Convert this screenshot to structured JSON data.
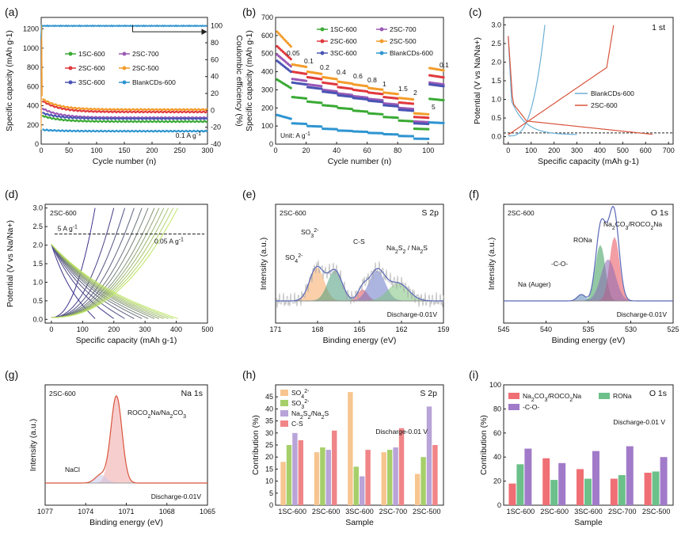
{
  "figure": {
    "colors": {
      "sc1_600": "#3aaa35",
      "sc2_700": "#9b59b6",
      "sc2_600": "#e0393e",
      "sc2_500": "#f39c2a",
      "sc3_600": "#4a55b4",
      "blank": "#2f95d1",
      "blank_c": "#6cb0d6",
      "sc2_c": "#d8553d",
      "sulfate": "#f7a964",
      "sulfite": "#4a9c7d",
      "cs": "#e8505b",
      "nas": "#7fc47f",
      "nas2": "#6a78c8",
      "env": "#5a68b8",
      "ro_na": "#3a9d5a",
      "co": "#8e6ab5",
      "na_auger": "#5b8ab8",
      "nacl": "#7c8fc2",
      "h_so4": "#f7c590",
      "h_so3": "#a6cf6a",
      "h_na2s": "#b8a4d8",
      "h_cs": "#f08588",
      "i_na2co3": "#ef6f74",
      "i_rona": "#6cc08a",
      "i_co": "#a17bc9"
    }
  },
  "chart_data": [
    {
      "panel": "(a)",
      "type": "scatter",
      "xlabel": "Cycle number (n)",
      "ylabel": "Specific capacity (mAh g-1)",
      "y2label": "Coulombic efficiency (%)",
      "xlim": [
        0,
        300
      ],
      "ylim": [
        0,
        1300
      ],
      "y2lim": [
        -40,
        110
      ],
      "xticks": [
        "0",
        "50",
        "100",
        "150",
        "200",
        "250",
        "300"
      ],
      "yticks": [
        "0",
        "200",
        "400",
        "600",
        "800",
        "1000",
        "1200"
      ],
      "y2ticks": [
        "-40",
        "-20",
        "0",
        "20",
        "40",
        "60",
        "80",
        "100"
      ],
      "annotation": "0.1 A g-1",
      "series": [
        {
          "name": "1SC-600",
          "color_key": "sc1_600",
          "start": 300,
          "end": 235
        },
        {
          "name": "2SC-700",
          "color_key": "sc2_700",
          "start": 380,
          "end": 275
        },
        {
          "name": "2SC-600",
          "color_key": "sc2_600",
          "start": 460,
          "end": 335
        },
        {
          "name": "2SC-500",
          "color_key": "sc2_500",
          "start": 480,
          "end": 360
        },
        {
          "name": "3SC-600",
          "color_key": "sc3_600",
          "start": 330,
          "end": 265
        },
        {
          "name": "BlankCDs-600",
          "color_key": "blank",
          "start": 150,
          "end": 135
        }
      ],
      "ce": 100
    },
    {
      "panel": "(b)",
      "type": "scatter",
      "xlabel": "Cycle number (n)",
      "ylabel": "Specific capacity (mAh g-1)",
      "xlim": [
        0,
        110
      ],
      "ylim": [
        0,
        700
      ],
      "xticks": [
        "0",
        "20",
        "40",
        "60",
        "80",
        "100"
      ],
      "yticks": [
        "0",
        "100",
        "200",
        "300",
        "400",
        "500",
        "600",
        "700"
      ],
      "unit_label": "Unit: A g-1",
      "rates": [
        "0.05",
        "0.1",
        "0.2",
        "0.4",
        "0.6",
        "0.8",
        "1",
        "1.5",
        "2",
        "5",
        "0.1"
      ],
      "series": [
        {
          "name": "1SC-600",
          "color_key": "sc1_600",
          "values": [
            310,
            260,
            235,
            215,
            200,
            185,
            170,
            150,
            130,
            85,
            250
          ]
        },
        {
          "name": "2SC-700",
          "color_key": "sc2_700",
          "values": [
            430,
            360,
            330,
            300,
            280,
            265,
            250,
            225,
            200,
            125,
            340
          ]
        },
        {
          "name": "2SC-600",
          "color_key": "sc2_600",
          "values": [
            470,
            400,
            370,
            340,
            315,
            300,
            285,
            260,
            230,
            150,
            380
          ]
        },
        {
          "name": "2SC-500",
          "color_key": "sc2_500",
          "values": [
            540,
            440,
            400,
            370,
            345,
            330,
            310,
            285,
            255,
            170,
            420
          ]
        },
        {
          "name": "3SC-600",
          "color_key": "sc3_600",
          "values": [
            400,
            340,
            315,
            290,
            270,
            255,
            240,
            215,
            190,
            115,
            330
          ]
        },
        {
          "name": "BlankCDs-600",
          "color_key": "blank",
          "values": [
            140,
            115,
            100,
            85,
            75,
            70,
            62,
            55,
            45,
            30,
            120
          ]
        }
      ]
    },
    {
      "panel": "(c)",
      "type": "line",
      "xlabel": "Specific capacity (mAh g-1)",
      "ylabel": "Potential (V vs Na/Na+)",
      "xlim": [
        -20,
        720
      ],
      "ylim": [
        -0.2,
        3.2
      ],
      "xticks": [
        "0",
        "100",
        "200",
        "300",
        "400",
        "500",
        "600",
        "700"
      ],
      "yticks": [
        "0.0",
        "0.5",
        "1.0",
        "1.5",
        "2.0",
        "2.5",
        "3.0"
      ],
      "title": "1 st",
      "series": [
        {
          "name": "BlankCDs-600",
          "color_key": "blank_c"
        },
        {
          "name": "2SC-600",
          "color_key": "sc2_c"
        }
      ]
    },
    {
      "panel": "(d)",
      "type": "line",
      "xlabel": "Specific capacity (mAh g-1)",
      "ylabel": "Potential (V vs Na/Na+)",
      "xlim": [
        -20,
        500
      ],
      "ylim": [
        -0.1,
        3.1
      ],
      "xticks": [
        "0",
        "100",
        "200",
        "300",
        "400",
        "500"
      ],
      "yticks": [
        "0.0",
        "0.5",
        "1.0",
        "1.5",
        "2.0",
        "2.5",
        "3.0"
      ],
      "sample": "2SC-600",
      "label_high": "5 A g-1",
      "label_low": "0.05 A g-1",
      "caps": [
        140,
        200,
        235,
        265,
        290,
        310,
        330,
        345,
        360,
        375,
        390,
        405
      ]
    },
    {
      "panel": "(e)",
      "type": "line",
      "xlabel": "Binding energy (eV)",
      "ylabel": "Intensity (a.u.)",
      "xticks": [
        "171",
        "168",
        "165",
        "162",
        "159"
      ],
      "sample": "2SC-600",
      "element": "S 2p",
      "state": "Discharge-0.01V",
      "peaks": [
        "SO4 2-",
        "SO3 2-",
        "C-S",
        "Na2S2 / Na2S"
      ]
    },
    {
      "panel": "(f)",
      "type": "line",
      "xlabel": "Binding energy (eV)",
      "ylabel": "Intensity (a.u.)",
      "xticks": [
        "545",
        "540",
        "535",
        "530",
        "525"
      ],
      "sample": "2SC-600",
      "element": "O 1s",
      "state": "Discharge-0.01V",
      "peaks": [
        "Na2CO3/ROCO2Na",
        "RONa",
        "-C-O-",
        "Na (Auger)"
      ]
    },
    {
      "panel": "(g)",
      "type": "line",
      "xlabel": "Binding energy (eV)",
      "ylabel": "Intensity (a.u.)",
      "xticks": [
        "1077",
        "1074",
        "1071",
        "1068",
        "1065"
      ],
      "sample": "2SC-600",
      "element": "Na 1s",
      "state": "Discharge-0.01V",
      "peaks": [
        "ROCO2Na/Na2CO3",
        "NaCl"
      ]
    },
    {
      "panel": "(h)",
      "type": "bar",
      "xlabel": "Sample",
      "ylabel": "Contribution (%)",
      "ylim": [
        0,
        50
      ],
      "yticks": [
        "0",
        "5",
        "10",
        "15",
        "20",
        "25",
        "30",
        "35",
        "40",
        "45"
      ],
      "title": "S 2p",
      "state": "Discharge-0.01 V",
      "categories": [
        "1SC-600",
        "2SC-600",
        "3SC-600",
        "2SC-700",
        "2SC-500"
      ],
      "series": [
        {
          "name": "SO4 2-",
          "color_key": "h_so4",
          "values": [
            18,
            22,
            47,
            22,
            13
          ]
        },
        {
          "name": "SO3 2-",
          "color_key": "h_so3",
          "values": [
            25,
            24,
            16,
            23,
            20
          ]
        },
        {
          "name": "Na2S2/Na2S",
          "color_key": "h_na2s",
          "values": [
            30,
            23,
            12,
            24,
            41
          ]
        },
        {
          "name": "C-S",
          "color_key": "h_cs",
          "values": [
            27,
            31,
            23,
            32,
            25
          ]
        }
      ]
    },
    {
      "panel": "(i)",
      "type": "bar",
      "xlabel": "Sample",
      "ylabel": "Contribution (%)",
      "ylim": [
        0,
        100
      ],
      "yticks": [
        "0",
        "20",
        "40",
        "60",
        "80",
        "100"
      ],
      "title": "O 1s",
      "state": "Discharge-0.01 V",
      "categories": [
        "1SC-600",
        "2SC-600",
        "3SC-600",
        "2SC-700",
        "2SC-500"
      ],
      "series": [
        {
          "name": "Na2CO3/ROCO2Na",
          "color_key": "i_na2co3",
          "values": [
            18,
            39,
            30,
            22,
            27
          ]
        },
        {
          "name": "RONa",
          "color_key": "i_rona",
          "values": [
            34,
            21,
            22,
            25,
            28
          ]
        },
        {
          "name": "-C-O-",
          "color_key": "i_co",
          "values": [
            47,
            35,
            45,
            49,
            40
          ]
        }
      ]
    }
  ]
}
